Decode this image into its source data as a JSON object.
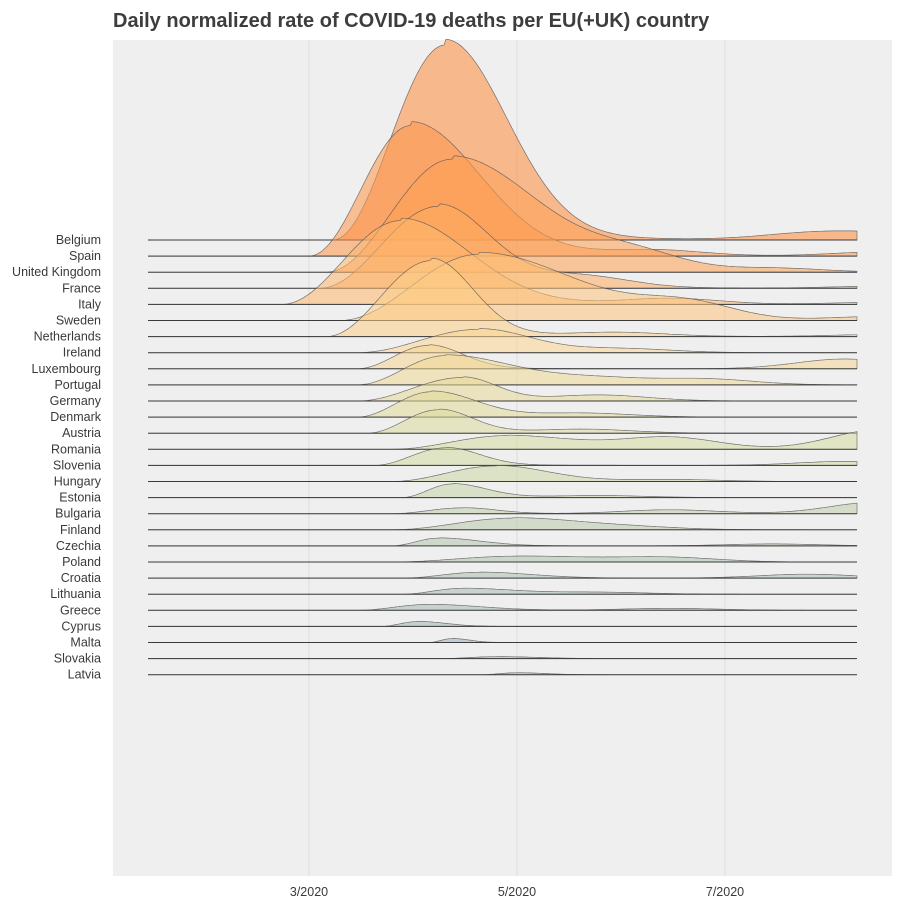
{
  "chart_data": {
    "type": "area",
    "subtype": "ridgeline",
    "title": "Daily normalized rate of COVID-19 deaths per EU(+UK) country",
    "xlabel": "",
    "ylabel": "",
    "x_ticks": [
      "3/2020",
      "5/2020",
      "7/2020"
    ],
    "grid": true,
    "colormap": [
      "#fe8a3b",
      "#fdd590",
      "#d2dd9f",
      "#aec1b0",
      "#97abc2"
    ],
    "series": [
      {
        "name": "Belgium",
        "peak": 1.0,
        "peak_date": "2020-04-10",
        "start": "2020-03-08",
        "fall": 18,
        "tail": [
          [
            "2020-07-25",
            0.03
          ],
          [
            "2020-08-15",
            0.03
          ]
        ]
      },
      {
        "name": "Spain",
        "peak": 0.67,
        "peak_date": "2020-03-31",
        "start": "2020-03-01",
        "fall": 20,
        "tail": [
          [
            "2020-06-10",
            0.03
          ],
          [
            "2020-08-15",
            0.02
          ]
        ]
      },
      {
        "name": "United Kingdom",
        "peak": 0.58,
        "peak_date": "2020-04-12",
        "start": "2020-03-06",
        "fall": 25,
        "tail": [
          [
            "2020-06-05",
            0.08
          ],
          [
            "2020-07-15",
            0.02
          ]
        ]
      },
      {
        "name": "France",
        "peak": 0.42,
        "peak_date": "2020-04-08",
        "start": "2020-03-04",
        "fall": 15,
        "tail": [
          [
            "2020-05-20",
            0.06
          ],
          [
            "2020-08-15",
            0.01
          ]
        ]
      },
      {
        "name": "Italy",
        "peak": 0.43,
        "peak_date": "2020-03-28",
        "start": "2020-02-22",
        "fall": 20,
        "tail": [
          [
            "2020-06-15",
            0.03
          ],
          [
            "2020-08-15",
            0.01
          ]
        ]
      },
      {
        "name": "Sweden",
        "peak": 0.34,
        "peak_date": "2020-04-20",
        "start": "2020-03-10",
        "fall": 28,
        "tail": [
          [
            "2020-06-20",
            0.08
          ],
          [
            "2020-08-15",
            0.02
          ]
        ]
      },
      {
        "name": "Netherlands",
        "peak": 0.39,
        "peak_date": "2020-04-06",
        "start": "2020-03-06",
        "fall": 12,
        "tail": [
          [
            "2020-05-30",
            0.02
          ],
          [
            "2020-08-15",
            0.01
          ]
        ]
      },
      {
        "name": "Ireland",
        "peak": 0.12,
        "peak_date": "2020-04-20",
        "start": "2020-03-15",
        "fall": 15,
        "tail": [
          [
            "2020-06-01",
            0.02
          ]
        ]
      },
      {
        "name": "Luxembourg",
        "peak": 0.12,
        "peak_date": "2020-04-05",
        "start": "2020-03-15",
        "fall": 10,
        "tail": [
          [
            "2020-08-05",
            0.05
          ]
        ]
      },
      {
        "name": "Portugal",
        "peak": 0.15,
        "peak_date": "2020-04-10",
        "start": "2020-03-15",
        "fall": 20,
        "tail": [
          [
            "2020-05-25",
            0.03
          ],
          [
            "2020-06-25",
            0.03
          ]
        ]
      },
      {
        "name": "Germany",
        "peak": 0.12,
        "peak_date": "2020-04-15",
        "start": "2020-03-15",
        "fall": 10,
        "tail": [
          [
            "2020-05-25",
            0.03
          ]
        ]
      },
      {
        "name": "Denmark",
        "peak": 0.13,
        "peak_date": "2020-04-06",
        "start": "2020-03-15",
        "fall": 13,
        "tail": [
          [
            "2020-05-20",
            0.02
          ]
        ]
      },
      {
        "name": "Austria",
        "peak": 0.12,
        "peak_date": "2020-04-08",
        "start": "2020-03-18",
        "fall": 10,
        "tail": [
          [
            "2020-05-20",
            0.02
          ]
        ]
      },
      {
        "name": "Romania",
        "peak": 0.07,
        "peak_date": "2020-04-28",
        "start": "2020-03-25",
        "fall": 20,
        "tail": [
          [
            "2020-06-15",
            0.06
          ],
          [
            "2020-08-15",
            0.1
          ]
        ]
      },
      {
        "name": "Slovenia",
        "peak": 0.09,
        "peak_date": "2020-04-10",
        "start": "2020-03-20",
        "fall": 10,
        "tail": [
          [
            "2020-08-05",
            0.02
          ]
        ]
      },
      {
        "name": "Hungary",
        "peak": 0.08,
        "peak_date": "2020-04-25",
        "start": "2020-03-25",
        "fall": 15,
        "tail": [
          [
            "2020-06-15",
            0.01
          ]
        ]
      },
      {
        "name": "Estonia",
        "peak": 0.07,
        "peak_date": "2020-04-12",
        "start": "2020-03-28",
        "fall": 10,
        "tail": [
          [
            "2020-05-25",
            0.01
          ]
        ]
      },
      {
        "name": "Bulgaria",
        "peak": 0.03,
        "peak_date": "2020-04-15",
        "start": "2020-03-25",
        "fall": 10,
        "tail": [
          [
            "2020-06-15",
            0.02
          ],
          [
            "2020-08-15",
            0.06
          ]
        ]
      },
      {
        "name": "Finland",
        "peak": 0.06,
        "peak_date": "2020-04-30",
        "start": "2020-03-25",
        "fall": 20,
        "tail": [
          [
            "2020-06-05",
            0.01
          ]
        ]
      },
      {
        "name": "Czechia",
        "peak": 0.04,
        "peak_date": "2020-04-08",
        "start": "2020-03-25",
        "fall": 12,
        "tail": [
          [
            "2020-07-15",
            0.01
          ]
        ]
      },
      {
        "name": "Poland",
        "peak": 0.03,
        "peak_date": "2020-05-01",
        "start": "2020-03-25",
        "fall": 25,
        "tail": [
          [
            "2020-06-15",
            0.02
          ]
        ]
      },
      {
        "name": "Croatia",
        "peak": 0.03,
        "peak_date": "2020-04-20",
        "start": "2020-03-28",
        "fall": 15,
        "tail": [
          [
            "2020-07-25",
            0.02
          ]
        ]
      },
      {
        "name": "Lithuania",
        "peak": 0.03,
        "peak_date": "2020-04-15",
        "start": "2020-03-28",
        "fall": 15,
        "tail": [
          [
            "2020-05-25",
            0.01
          ]
        ]
      },
      {
        "name": "Greece",
        "peak": 0.03,
        "peak_date": "2020-04-05",
        "start": "2020-03-15",
        "fall": 15,
        "tail": [
          [
            "2020-06-15",
            0.01
          ]
        ]
      },
      {
        "name": "Cyprus",
        "peak": 0.025,
        "peak_date": "2020-04-02",
        "start": "2020-03-22",
        "fall": 8,
        "tail": []
      },
      {
        "name": "Malta",
        "peak": 0.02,
        "peak_date": "2020-04-12",
        "start": "2020-04-05",
        "fall": 5,
        "tail": []
      },
      {
        "name": "Slovakia",
        "peak": 0.01,
        "peak_date": "2020-04-25",
        "start": "2020-04-08",
        "fall": 12,
        "tail": []
      },
      {
        "name": "Latvia",
        "peak": 0.01,
        "peak_date": "2020-05-01",
        "start": "2020-04-20",
        "fall": 8,
        "tail": []
      }
    ]
  }
}
